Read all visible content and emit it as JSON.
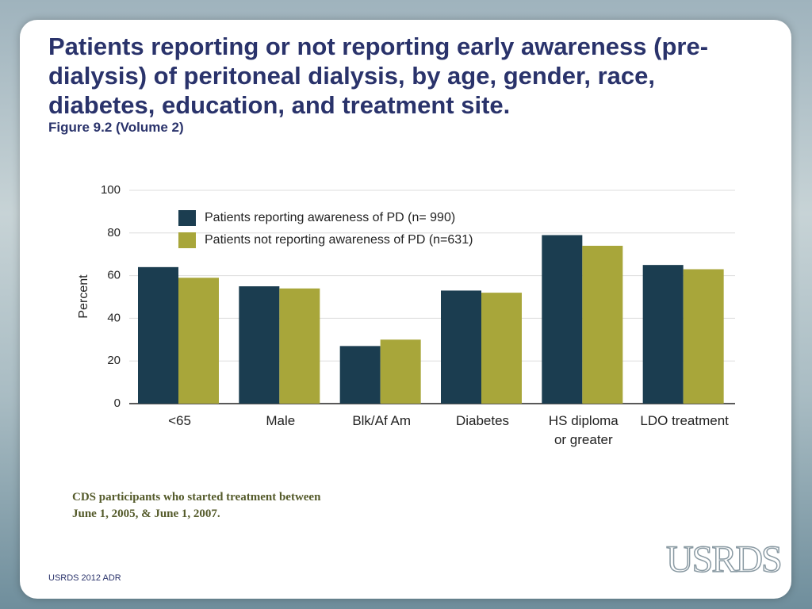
{
  "chart_data": {
    "type": "bar",
    "title": "Patients reporting or not reporting early awareness (pre-dialysis) of peritoneal dialysis, by age, gender, race, diabetes, education, and treatment site.",
    "subtitle": "Figure 9.2 (Volume 2)",
    "y_label": "Percent",
    "categories": [
      "<65",
      "Male",
      "Blk/Af Am",
      "Diabetes",
      "HS diploma\nor greater",
      "LDO treatment"
    ],
    "series": [
      {
        "name": "Patients reporting awareness of PD (n= 990)",
        "color": "#1b3d50",
        "values": [
          64,
          55,
          27,
          53,
          79,
          65
        ]
      },
      {
        "name": "Patients not reporting awareness of PD (n=631)",
        "color": "#a8a63a",
        "values": [
          59,
          54,
          30,
          52,
          74,
          63
        ]
      }
    ],
    "ylim": [
      0,
      100
    ],
    "yticks": [
      0,
      20,
      40,
      60,
      80,
      100
    ],
    "grid": true,
    "legend": "top-left"
  },
  "note": "CDS participants who started treatment between June 1, 2005, & June 1, 2007.",
  "footer": "USRDS 2012 ADR",
  "logo": "USRDS"
}
